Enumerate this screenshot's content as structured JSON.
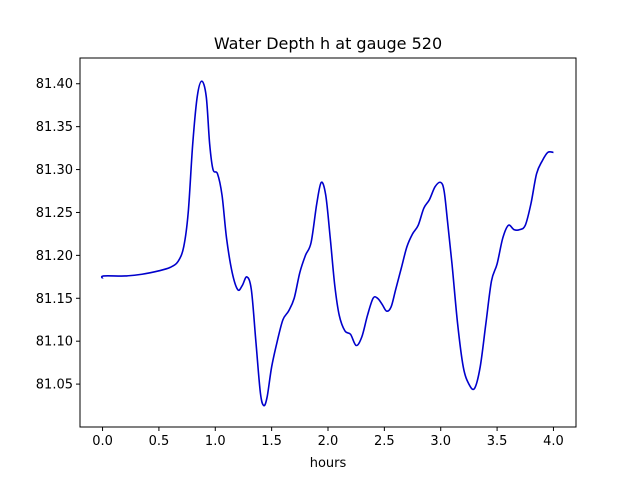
{
  "chart_data": {
    "type": "line",
    "title": "Water Depth h at gauge 520",
    "xlabel": "hours",
    "ylabel": "",
    "xlim": [
      -0.2,
      4.2
    ],
    "ylim": [
      81.0,
      81.43
    ],
    "xticks": [
      {
        "value": 0.0,
        "label": "0.0"
      },
      {
        "value": 0.5,
        "label": "0.5"
      },
      {
        "value": 1.0,
        "label": "1.0"
      },
      {
        "value": 1.5,
        "label": "1.5"
      },
      {
        "value": 2.0,
        "label": "2.0"
      },
      {
        "value": 2.5,
        "label": "2.5"
      },
      {
        "value": 3.0,
        "label": "3.0"
      },
      {
        "value": 3.5,
        "label": "3.5"
      },
      {
        "value": 4.0,
        "label": "4.0"
      }
    ],
    "yticks": [
      {
        "value": 81.05,
        "label": "81.05"
      },
      {
        "value": 81.1,
        "label": "81.10"
      },
      {
        "value": 81.15,
        "label": "81.15"
      },
      {
        "value": 81.2,
        "label": "81.20"
      },
      {
        "value": 81.25,
        "label": "81.25"
      },
      {
        "value": 81.3,
        "label": "81.30"
      },
      {
        "value": 81.35,
        "label": "81.35"
      },
      {
        "value": 81.4,
        "label": "81.40"
      }
    ],
    "grid": false,
    "series": [
      {
        "color": "#0000cc",
        "x": [
          0.0,
          0.01,
          0.2,
          0.35,
          0.5,
          0.6,
          0.67,
          0.72,
          0.76,
          0.8,
          0.84,
          0.88,
          0.92,
          0.95,
          0.98,
          1.02,
          1.06,
          1.1,
          1.15,
          1.2,
          1.24,
          1.28,
          1.32,
          1.36,
          1.4,
          1.43,
          1.46,
          1.5,
          1.55,
          1.6,
          1.65,
          1.7,
          1.75,
          1.8,
          1.85,
          1.9,
          1.94,
          1.98,
          2.02,
          2.06,
          2.1,
          2.15,
          2.2,
          2.25,
          2.3,
          2.35,
          2.4,
          2.44,
          2.48,
          2.52,
          2.56,
          2.6,
          2.65,
          2.7,
          2.75,
          2.8,
          2.85,
          2.9,
          2.95,
          3.0,
          3.03,
          3.06,
          3.1,
          3.15,
          3.2,
          3.25,
          3.3,
          3.35,
          3.4,
          3.45,
          3.5,
          3.55,
          3.6,
          3.65,
          3.7,
          3.75,
          3.8,
          3.85,
          3.9,
          3.95,
          4.0
        ],
        "y": [
          81.173,
          81.176,
          81.176,
          81.178,
          81.182,
          81.186,
          81.193,
          81.21,
          81.25,
          81.33,
          81.385,
          81.403,
          81.385,
          81.33,
          81.3,
          81.295,
          81.27,
          81.22,
          81.18,
          81.16,
          81.165,
          81.175,
          81.16,
          81.1,
          81.04,
          81.025,
          81.035,
          81.07,
          81.1,
          81.125,
          81.135,
          81.15,
          81.18,
          81.2,
          81.215,
          81.26,
          81.285,
          81.27,
          81.22,
          81.165,
          81.13,
          81.112,
          81.108,
          81.095,
          81.105,
          81.13,
          81.15,
          81.15,
          81.143,
          81.135,
          81.14,
          81.16,
          81.185,
          81.21,
          81.225,
          81.235,
          81.255,
          81.265,
          81.28,
          81.285,
          81.275,
          81.24,
          81.19,
          81.12,
          81.07,
          81.05,
          81.045,
          81.07,
          81.12,
          81.17,
          81.19,
          81.22,
          81.235,
          81.23,
          81.23,
          81.235,
          81.26,
          81.295,
          81.31,
          81.32,
          81.32
        ]
      }
    ]
  }
}
